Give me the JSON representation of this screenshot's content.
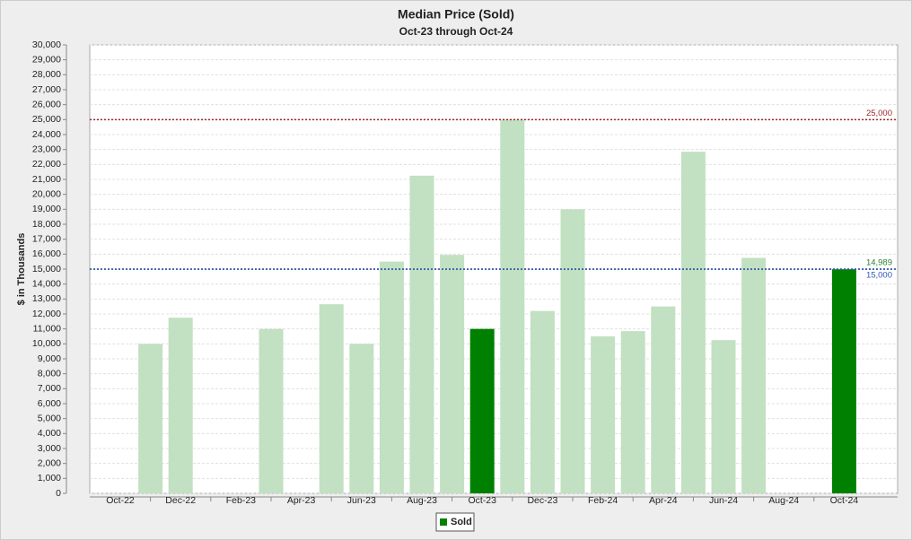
{
  "chart_data": {
    "type": "bar",
    "title": "Median Price (Sold)",
    "subtitle": "Oct-23 through Oct-24",
    "ylabel": "$ in Thousands",
    "categories": [
      "Oct-22",
      null,
      "Dec-22",
      null,
      "Feb-23",
      null,
      "Apr-23",
      null,
      "Jun-23",
      null,
      "Aug-23",
      null,
      "Oct-23",
      null,
      "Dec-23",
      null,
      "Feb-24",
      null,
      "Apr-24",
      null,
      "Jun-24",
      null,
      "Aug-24",
      null,
      "Oct-24"
    ],
    "values": [
      null,
      10000,
      11750,
      null,
      null,
      11000,
      null,
      12650,
      10000,
      15500,
      21250,
      15950,
      11000,
      25000,
      12200,
      19000,
      10500,
      10850,
      12500,
      22850,
      10250,
      15750,
      null,
      null,
      14989
    ],
    "colors": [
      "#c2e0c2",
      "#c2e0c2",
      "#c2e0c2",
      "#c2e0c2",
      "#c2e0c2",
      "#c2e0c2",
      "#c2e0c2",
      "#c2e0c2",
      "#c2e0c2",
      "#c2e0c2",
      "#c2e0c2",
      "#c2e0c2",
      "#008000",
      "#c2e0c2",
      "#c2e0c2",
      "#c2e0c2",
      "#c2e0c2",
      "#c2e0c2",
      "#c2e0c2",
      "#c2e0c2",
      "#c2e0c2",
      "#c2e0c2",
      "#c2e0c2",
      "#c2e0c2",
      "#008000"
    ],
    "legend": [
      {
        "name": "Sold",
        "color": "#008000"
      }
    ],
    "reference_lines": [
      {
        "value": 25000,
        "label": "25,000",
        "color": "#a0282d",
        "position": "above"
      },
      {
        "value": 14989,
        "label": "14,989",
        "color": "#2e7d32",
        "position": "above"
      },
      {
        "value": 15000,
        "label": "15,000",
        "color": "#3355bb",
        "position": "below"
      }
    ],
    "ylim": [
      0,
      30000
    ],
    "yticks": [
      0,
      {
        "value": 1000,
        "label": "1,000"
      },
      {
        "value": 2000,
        "label": "2,000"
      },
      {
        "value": 3000,
        "label": "3,000"
      },
      {
        "value": 4000,
        "label": "4,000"
      },
      {
        "value": 5000,
        "label": "5,000"
      },
      {
        "value": 6000,
        "label": "6,000"
      },
      {
        "value": 7000,
        "label": "7,000"
      },
      {
        "value": 8000,
        "label": "8,000"
      },
      {
        "value": 9000,
        "label": "9,000"
      },
      {
        "value": 10000,
        "label": "10,000"
      },
      {
        "value": 11000,
        "label": "11,000"
      },
      {
        "value": 12000,
        "label": "12,000"
      },
      {
        "value": 13000,
        "label": "13,000"
      },
      {
        "value": 14000,
        "label": "14,000"
      },
      {
        "value": 15000,
        "label": "15,000"
      },
      {
        "value": 16000,
        "label": "16,000"
      },
      {
        "value": 17000,
        "label": "17,000"
      },
      {
        "value": 18000,
        "label": "18,000"
      },
      {
        "value": 19000,
        "label": "19,000"
      },
      {
        "value": 20000,
        "label": "20,000"
      },
      {
        "value": 21000,
        "label": "21,000"
      },
      {
        "value": 22000,
        "label": "22,000"
      },
      {
        "value": 23000,
        "label": "23,000"
      },
      {
        "value": 24000,
        "label": "24,000"
      },
      {
        "value": 25000,
        "label": "25,000"
      },
      {
        "value": 26000,
        "label": "26,000"
      },
      {
        "value": 27000,
        "label": "27,000"
      },
      {
        "value": 28000,
        "label": "28,000"
      },
      {
        "value": 29000,
        "label": "29,000"
      },
      {
        "value": 30000,
        "label": "30,000"
      }
    ],
    "grid": true
  }
}
